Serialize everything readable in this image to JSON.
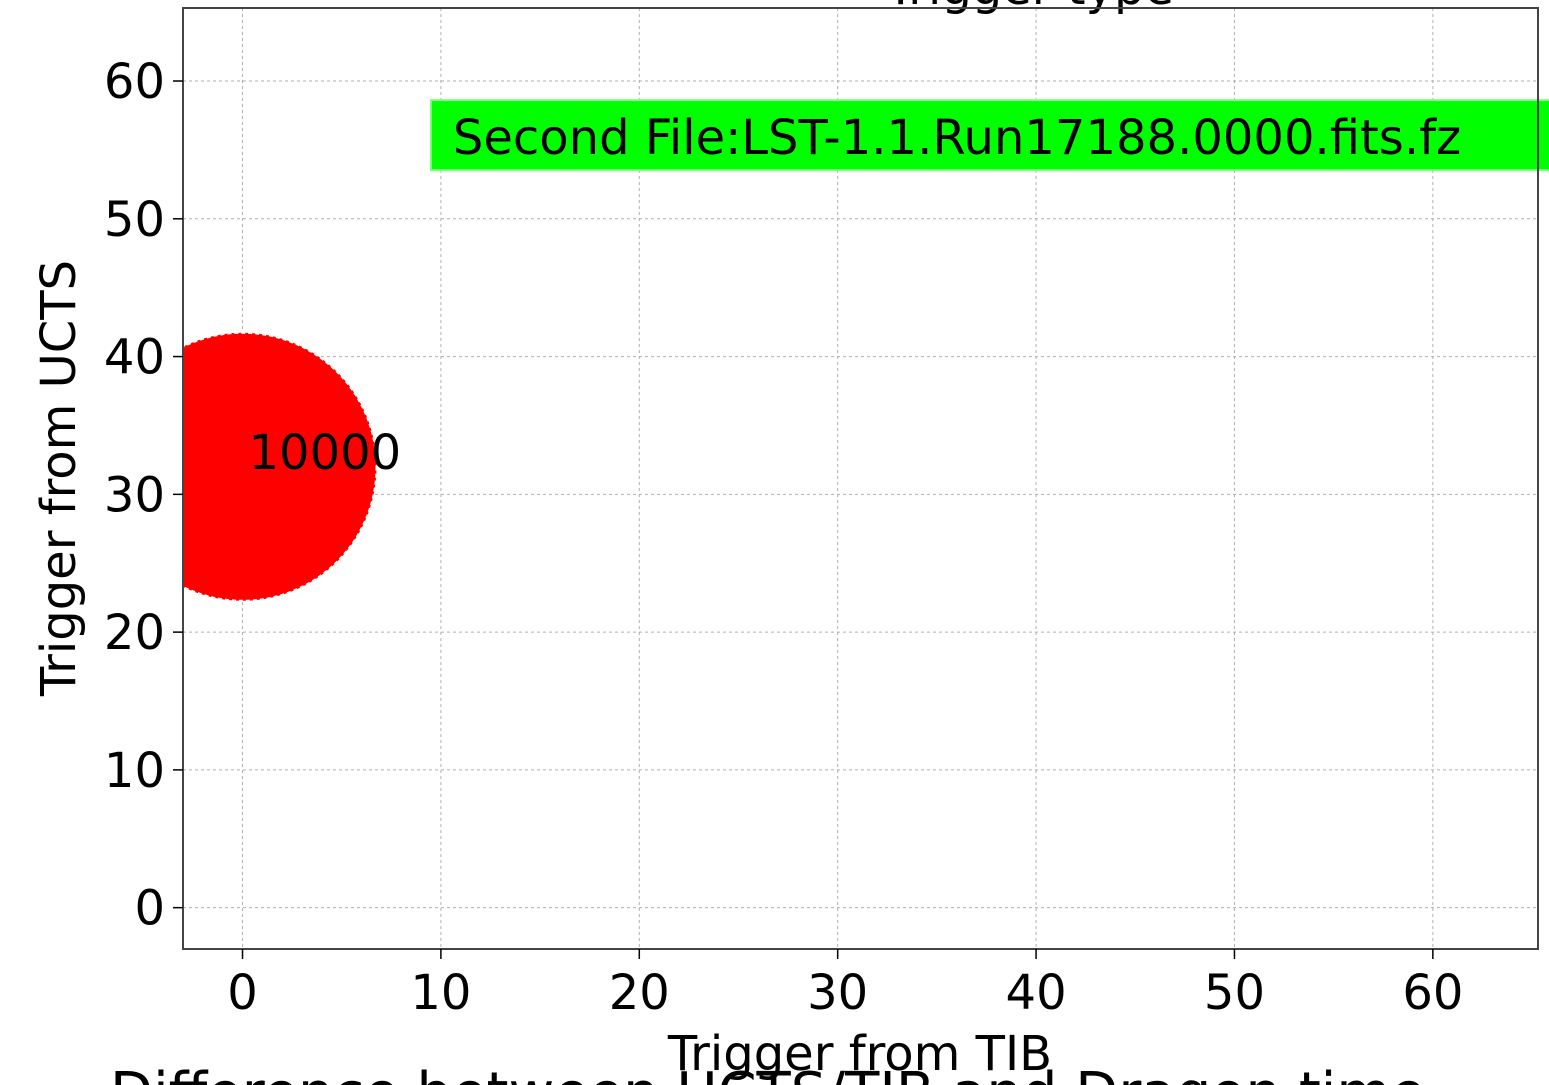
{
  "chart_data": {
    "type": "scatter",
    "title_fragment": "Trigger type",
    "bottom_title_fragment": "Difference between UCTS/TIB and Dragon time",
    "xlabel": "Trigger from TIB",
    "ylabel": "Trigger from UCTS",
    "xlim": [
      -3,
      65.3
    ],
    "ylim": [
      -3,
      65.3
    ],
    "xticks": [
      0,
      10,
      20,
      30,
      40,
      50,
      60
    ],
    "yticks": [
      0,
      10,
      20,
      30,
      40,
      50,
      60
    ],
    "grid": true,
    "points": [
      {
        "x": 0,
        "y": 32,
        "count": 10000,
        "label": "10000",
        "color": "#ff0000"
      }
    ],
    "annotation": {
      "text": "Second File:LST-1.1.Run17188.0000.fits.fz",
      "x": 10,
      "y": 56,
      "background": "#00ff00"
    }
  }
}
